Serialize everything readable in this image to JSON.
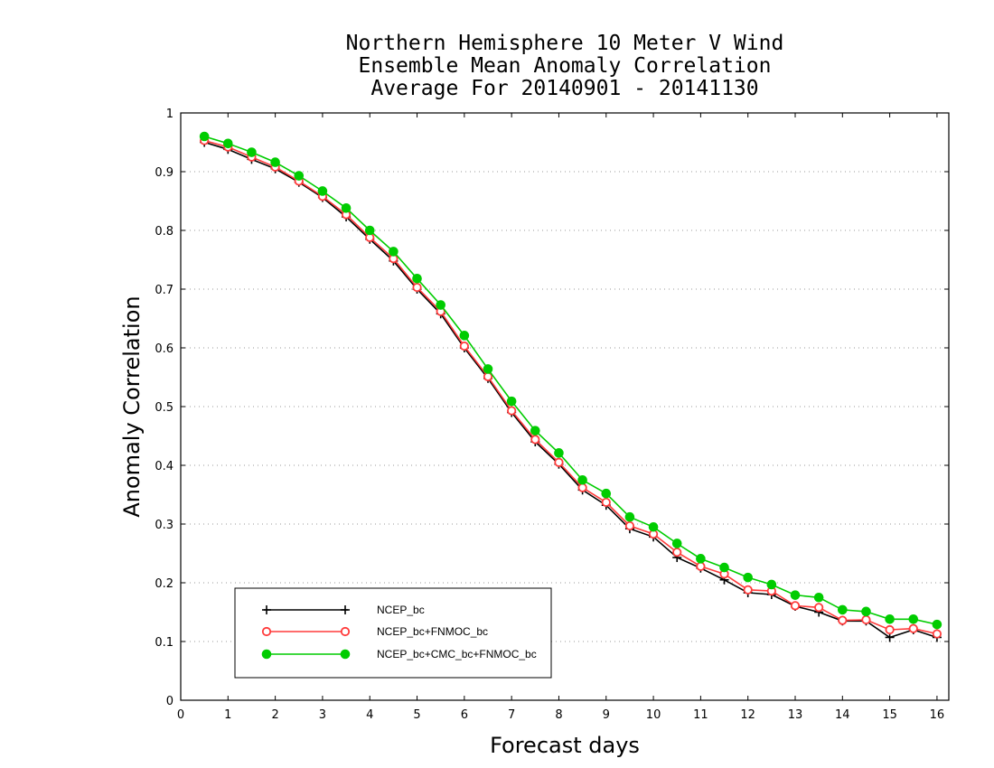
{
  "chart_data": {
    "type": "line",
    "title": [
      "Northern Hemisphere 10 Meter V Wind",
      "Ensemble Mean Anomaly Correlation",
      "Average For 20140901 - 20141130"
    ],
    "xlabel": "Forecast days",
    "ylabel": "Anomaly Correlation",
    "xlim": [
      0,
      16.25
    ],
    "ylim": [
      0,
      1
    ],
    "xticks": [
      "0",
      "1",
      "2",
      "3",
      "4",
      "5",
      "6",
      "7",
      "8",
      "9",
      "10",
      "11",
      "12",
      "13",
      "14",
      "15",
      "16"
    ],
    "yticks": [
      "0",
      "0.1",
      "0.2",
      "0.3",
      "0.4",
      "0.5",
      "0.6",
      "0.7",
      "0.8",
      "0.9",
      "1"
    ],
    "grid": "horizontal dotted",
    "legend_position": "bottom-left",
    "x": [
      0.5,
      1,
      1.5,
      2,
      2.5,
      3,
      3.5,
      4,
      4.5,
      5,
      5.5,
      6,
      6.5,
      7,
      7.5,
      8,
      8.5,
      9,
      9.5,
      10,
      10.5,
      11,
      11.5,
      12,
      12.5,
      13,
      13.5,
      14,
      14.5,
      15,
      15.5,
      16
    ],
    "series": [
      {
        "name": "NCEP_bc",
        "color": "#000000",
        "marker": "plus",
        "values": [
          0.95,
          0.938,
          0.921,
          0.905,
          0.882,
          0.856,
          0.823,
          0.785,
          0.748,
          0.7,
          0.658,
          0.6,
          0.548,
          0.49,
          0.44,
          0.402,
          0.358,
          0.332,
          0.292,
          0.278,
          0.243,
          0.225,
          0.205,
          0.183,
          0.18,
          0.16,
          0.15,
          0.135,
          0.135,
          0.107,
          0.12,
          0.107
        ]
      },
      {
        "name": "NCEP_bc+FNMOC_bc",
        "color": "#ff3b3b",
        "marker": "open-circle",
        "values": [
          0.953,
          0.942,
          0.925,
          0.908,
          0.884,
          0.858,
          0.827,
          0.788,
          0.752,
          0.703,
          0.662,
          0.603,
          0.551,
          0.493,
          0.444,
          0.405,
          0.362,
          0.337,
          0.297,
          0.283,
          0.252,
          0.228,
          0.215,
          0.188,
          0.186,
          0.161,
          0.158,
          0.136,
          0.137,
          0.12,
          0.122,
          0.113
        ]
      },
      {
        "name": "NCEP_bc+CMC_bc+FNMOC_bc",
        "color": "#00cc00",
        "marker": "filled-circle",
        "values": [
          0.96,
          0.948,
          0.933,
          0.916,
          0.893,
          0.867,
          0.838,
          0.8,
          0.764,
          0.718,
          0.673,
          0.621,
          0.564,
          0.509,
          0.459,
          0.421,
          0.375,
          0.352,
          0.312,
          0.295,
          0.267,
          0.241,
          0.226,
          0.209,
          0.197,
          0.179,
          0.175,
          0.154,
          0.151,
          0.138,
          0.138,
          0.129
        ]
      }
    ]
  }
}
